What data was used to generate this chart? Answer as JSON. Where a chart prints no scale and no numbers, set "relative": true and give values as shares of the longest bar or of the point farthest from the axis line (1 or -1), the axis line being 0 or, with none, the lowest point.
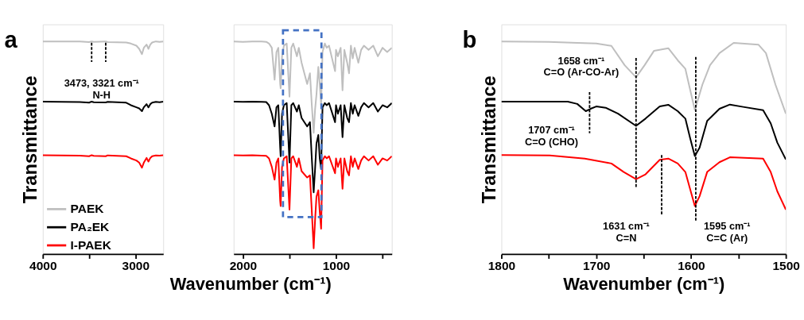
{
  "chart_data": [
    {
      "type": "line",
      "ylabel": "Transmittance",
      "relative": true,
      "legend": "bottom left",
      "xlim": [
        4000,
        2700
      ],
      "xticks": [
        4000,
        {
          "value": 3500,
          "label": null
        },
        3000
      ],
      "annotations": [
        "a",
        "3473, 3321 cm⁻¹\nN-H"
      ],
      "series": [
        {
          "name": "PAEK",
          "color": "#bfbfbf",
          "x": [
            4000,
            3600,
            3500,
            3473,
            3450,
            3321,
            3300,
            3100,
            3050,
            2990,
            2960,
            2930,
            2910,
            2880,
            2860,
            2840,
            2820,
            2780,
            2740,
            2700
          ],
          "values": [
            1,
            1,
            0.997,
            1,
            0.998,
            1,
            0.997,
            0.995,
            0.99,
            0.98,
            0.965,
            0.94,
            0.97,
            0.985,
            0.965,
            0.985,
            0.995,
            1,
            0.998,
            1
          ]
        },
        {
          "name": "PA₂EK",
          "color": "#000000",
          "x": [
            4000,
            3600,
            3500,
            3473,
            3450,
            3321,
            3300,
            3100,
            3050,
            2990,
            2960,
            2930,
            2910,
            2880,
            2860,
            2840,
            2820,
            2780,
            2740,
            2700
          ],
          "values": [
            0.717,
            0.715,
            0.712,
            0.717,
            0.714,
            0.713,
            0.716,
            0.712,
            0.7,
            0.69,
            0.685,
            0.672,
            0.69,
            0.705,
            0.69,
            0.705,
            0.712,
            0.716,
            0.714,
            0.717
          ]
        },
        {
          "name": "I-PAEK",
          "color": "#ff0000",
          "x": [
            4000,
            3600,
            3500,
            3473,
            3450,
            3321,
            3300,
            3100,
            3050,
            2990,
            2960,
            2930,
            2910,
            2880,
            2860,
            2840,
            2820,
            2780,
            2740,
            2700
          ],
          "values": [
            0.465,
            0.463,
            0.46,
            0.465,
            0.462,
            0.46,
            0.464,
            0.46,
            0.45,
            0.44,
            0.43,
            0.406,
            0.43,
            0.452,
            0.435,
            0.452,
            0.46,
            0.464,
            0.463,
            0.465
          ]
        },
        {
          "type": "line",
          "color": "#000000",
          "line_style": "dashed",
          "x": [
            3473,
            3473
          ],
          "values": [
            0.994,
            0.903
          ]
        },
        {
          "type": "line",
          "color": "#000000",
          "line_style": "dashed",
          "x": [
            3321,
            3321
          ],
          "values": [
            0.994,
            0.903
          ]
        }
      ]
    },
    {
      "type": "line",
      "xlabel": "Wavenumber (cm⁻¹)",
      "relative": true,
      "xlim": [
        2100,
        400
      ],
      "xticks": [
        2000,
        {
          "value": 1500,
          "label": null
        },
        1000,
        {
          "value": 500,
          "label": null
        }
      ],
      "series": [
        {
          "name": "PAEK",
          "color": "#bfbfbf",
          "x": [
            2100,
            2000,
            1900,
            1800,
            1750,
            1720,
            1690,
            1660,
            1640,
            1620,
            1600,
            1595,
            1580,
            1560,
            1530,
            1500,
            1480,
            1460,
            1420,
            1400,
            1370,
            1310,
            1280,
            1260,
            1240,
            1225,
            1210,
            1190,
            1175,
            1160,
            1145,
            1120,
            1100,
            1075,
            1010,
            1000,
            980,
            950,
            930,
            910,
            880,
            860,
            840,
            820,
            800,
            760,
            730,
            700,
            650,
            600,
            550,
            500,
            450,
            400
          ],
          "values": [
            1,
            0.998,
            1,
            1,
            0.998,
            0.99,
            0.97,
            0.82,
            0.95,
            0.97,
            0.8,
            0.78,
            0.93,
            0.98,
            0.99,
            0.74,
            0.97,
            0.99,
            0.93,
            0.97,
            0.9,
            0.8,
            0.85,
            0.7,
            0.57,
            0.68,
            0.75,
            0.88,
            0.8,
            0.7,
            0.95,
            0.99,
            0.97,
            0.98,
            0.86,
            0.96,
            0.93,
            0.97,
            0.77,
            0.96,
            0.9,
            0.85,
            0.98,
            0.92,
            0.97,
            0.9,
            0.96,
            0.98,
            0.96,
            0.98,
            0.93,
            0.97,
            0.95,
            0.97
          ]
        },
        {
          "name": "PA₂EK",
          "color": "#000000",
          "x": [
            2100,
            2000,
            1900,
            1800,
            1750,
            1720,
            1690,
            1660,
            1640,
            1620,
            1600,
            1595,
            1580,
            1560,
            1530,
            1500,
            1480,
            1460,
            1420,
            1400,
            1370,
            1310,
            1280,
            1260,
            1240,
            1225,
            1210,
            1190,
            1175,
            1160,
            1145,
            1120,
            1100,
            1075,
            1010,
            1000,
            980,
            950,
            930,
            910,
            880,
            860,
            840,
            820,
            800,
            760,
            730,
            700,
            650,
            600,
            550,
            500,
            450,
            400
          ],
          "values": [
            0.717,
            0.716,
            0.717,
            0.716,
            0.715,
            0.7,
            0.66,
            0.6,
            0.69,
            0.7,
            0.5,
            0.46,
            0.66,
            0.7,
            0.71,
            0.43,
            0.7,
            0.71,
            0.67,
            0.7,
            0.64,
            0.6,
            0.62,
            0.45,
            0.29,
            0.4,
            0.52,
            0.56,
            0.45,
            0.4,
            0.69,
            0.71,
            0.7,
            0.71,
            0.62,
            0.7,
            0.66,
            0.7,
            0.55,
            0.7,
            0.64,
            0.62,
            0.71,
            0.66,
            0.7,
            0.65,
            0.69,
            0.71,
            0.69,
            0.71,
            0.67,
            0.7,
            0.69,
            0.71
          ]
        },
        {
          "name": "I-PAEK",
          "color": "#ff0000",
          "x": [
            2100,
            2000,
            1900,
            1800,
            1750,
            1720,
            1690,
            1660,
            1640,
            1620,
            1600,
            1595,
            1580,
            1560,
            1530,
            1500,
            1480,
            1460,
            1420,
            1400,
            1370,
            1310,
            1280,
            1260,
            1240,
            1225,
            1210,
            1190,
            1175,
            1160,
            1145,
            1120,
            1100,
            1075,
            1010,
            1000,
            980,
            950,
            930,
            910,
            880,
            860,
            840,
            820,
            800,
            760,
            730,
            700,
            650,
            600,
            550,
            500,
            450,
            400
          ],
          "values": [
            0.465,
            0.464,
            0.465,
            0.463,
            0.462,
            0.45,
            0.41,
            0.35,
            0.43,
            0.45,
            0.25,
            0.226,
            0.41,
            0.45,
            0.46,
            0.209,
            0.45,
            0.46,
            0.41,
            0.45,
            0.39,
            0.36,
            0.37,
            0.2,
            0.027,
            0.16,
            0.27,
            0.3,
            0.2,
            0.119,
            0.44,
            0.46,
            0.45,
            0.46,
            0.38,
            0.45,
            0.41,
            0.45,
            0.307,
            0.45,
            0.39,
            0.37,
            0.46,
            0.41,
            0.45,
            0.4,
            0.44,
            0.46,
            0.44,
            0.46,
            0.42,
            0.45,
            0.44,
            0.46
          ]
        }
      ]
    },
    {
      "type": "line",
      "xlabel": "Wavenumber (cm⁻¹)",
      "ylabel": "Transmittance",
      "relative": true,
      "legend": "bottom left",
      "xlim": [
        1800,
        1500
      ],
      "xticks": [
        1800,
        {
          "value": 1750,
          "label": null
        },
        1700,
        {
          "value": 1650,
          "label": null
        },
        1600,
        {
          "value": 1550,
          "label": null
        },
        1500
      ],
      "annotations": [
        "b",
        "1658 cm⁻¹\nC=O (Ar-CO-Ar)",
        "1707 cm⁻¹\nC=O (CHO)",
        "1631 cm⁻¹\nC=N",
        "1595 cm⁻¹\nC=C (Ar)"
      ],
      "series": [
        {
          "name": "PAEK",
          "color": "#bfbfbf",
          "x": [
            1800,
            1750,
            1720,
            1700,
            1684,
            1670,
            1658,
            1649,
            1639,
            1624,
            1614,
            1606,
            1601,
            1596,
            1588,
            1580,
            1570,
            1555,
            1529,
            1521,
            1511,
            1500
          ],
          "values": [
            1.0,
            0.998,
            0.993,
            0.99,
            0.979,
            0.888,
            0.831,
            0.888,
            0.956,
            0.968,
            0.911,
            0.871,
            0.774,
            0.677,
            0.797,
            0.888,
            0.945,
            0.993,
            0.985,
            0.945,
            0.797,
            0.66
          ]
        },
        {
          "name": "PA₂EK",
          "color": "#000000",
          "x": [
            1800,
            1730,
            1720,
            1711,
            1706,
            1700,
            1690,
            1677,
            1658,
            1648,
            1633,
            1624,
            1614,
            1606,
            1601,
            1596,
            1591,
            1583,
            1570,
            1559,
            1545,
            1524,
            1516,
            1509,
            1500
          ],
          "values": [
            0.717,
            0.717,
            0.706,
            0.672,
            0.683,
            0.694,
            0.688,
            0.66,
            0.603,
            0.637,
            0.694,
            0.702,
            0.672,
            0.637,
            0.546,
            0.461,
            0.5,
            0.626,
            0.683,
            0.703,
            0.692,
            0.677,
            0.615,
            0.524,
            0.445
          ]
        },
        {
          "name": "I-PAEK",
          "color": "#ff0000",
          "x": [
            1800,
            1749,
            1712,
            1684,
            1671,
            1658,
            1648,
            1633,
            1624,
            1614,
            1606,
            1601,
            1596,
            1591,
            1583,
            1570,
            1559,
            1524,
            1516,
            1509,
            1500
          ],
          "values": [
            0.466,
            0.464,
            0.449,
            0.426,
            0.386,
            0.352,
            0.375,
            0.443,
            0.449,
            0.426,
            0.386,
            0.306,
            0.226,
            0.272,
            0.386,
            0.432,
            0.455,
            0.449,
            0.386,
            0.295,
            0.209
          ]
        },
        {
          "type": "line",
          "color": "#000000",
          "line_style": "dashed",
          "x": [
            1707,
            1707
          ],
          "values": [
            0.762,
            0.568
          ]
        },
        {
          "type": "line",
          "color": "#000000",
          "line_style": "dashed",
          "x": [
            1658,
            1658
          ],
          "values": [
            0.922,
            0.312
          ]
        },
        {
          "type": "line",
          "color": "#000000",
          "line_style": "dashed",
          "x": [
            1631,
            1631
          ],
          "values": [
            0.466,
            0.181
          ]
        },
        {
          "type": "line",
          "color": "#000000",
          "line_style": "dashed",
          "x": [
            1595,
            1595
          ],
          "values": [
            0.927,
            0.158
          ]
        }
      ]
    }
  ]
}
